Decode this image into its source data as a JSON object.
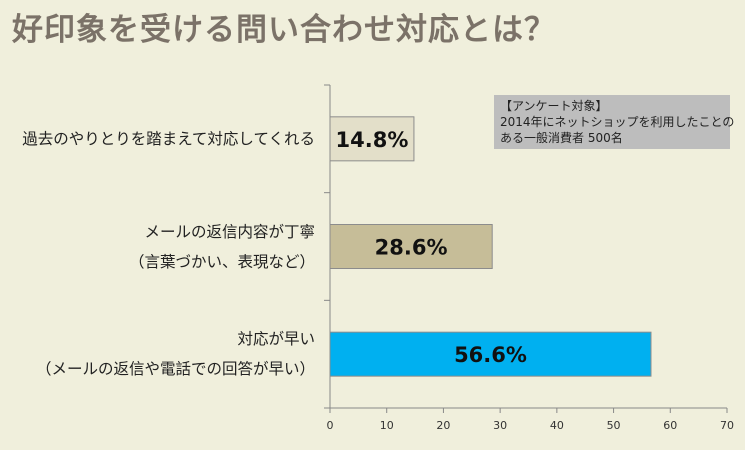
{
  "title": "好印象を受ける問い合わせ対応とは？",
  "note": {
    "lines": [
      "【アンケート対象】",
      "2014年にネットショップを利用したことの",
      "ある一般消費者 500名"
    ]
  },
  "colors": {
    "background": "#f0efdc",
    "bar_1": "#e3dfc9",
    "bar_2": "#c6bd98",
    "bar_3": "#00b0f0"
  },
  "chart_data": {
    "type": "bar",
    "orientation": "horizontal",
    "categories": [
      [
        "過去のやりとりを踏まえて対応してくれる"
      ],
      [
        "メールの返信内容が丁寧",
        "（言葉づかい、表現など）"
      ],
      [
        "対応が早い",
        "（メールの返信や電話での回答が早い）"
      ]
    ],
    "values": [
      14.8,
      28.6,
      56.6
    ],
    "data_labels": [
      "14.8%",
      "28.6%",
      "56.6%"
    ],
    "xlim": [
      0,
      70
    ],
    "xticks": [
      0,
      10,
      20,
      30,
      40,
      50,
      60,
      70
    ],
    "grid": false
  }
}
